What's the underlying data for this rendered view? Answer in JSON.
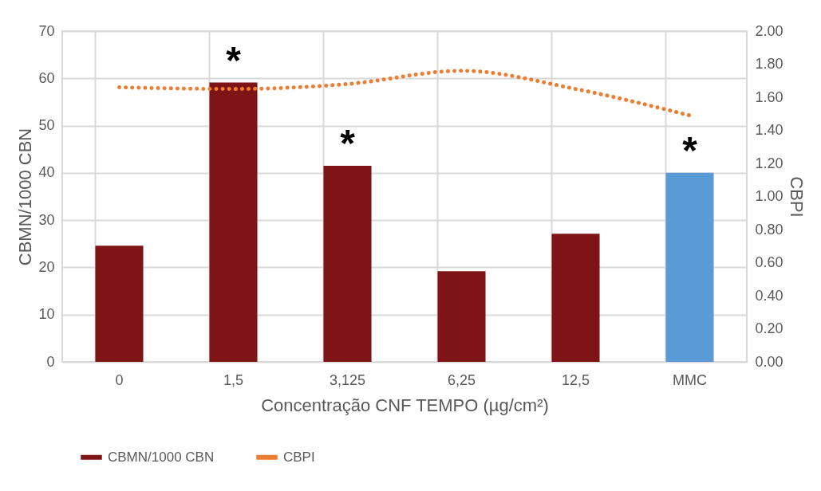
{
  "chart_data": {
    "type": "bar",
    "xlabel": "Concentração CNF TEMPO (µg/cm²)",
    "ylabel": "CBMN/1000 CBN",
    "y2label": "CBPI",
    "categories": [
      "0",
      "1,5",
      "3,125",
      "6,25",
      "12,5",
      "MMC"
    ],
    "series": [
      {
        "name": "CBMN/1000 CBN",
        "color": "#7f1416",
        "colors": [
          "#7f1416",
          "#7f1416",
          "#7f1416",
          "#7f1416",
          "#7f1416",
          "#5b9bd5"
        ],
        "values": [
          24.6,
          59.1,
          41.5,
          19.2,
          27.1,
          40.0
        ]
      },
      {
        "name": "CBPI",
        "type": "line",
        "axis": "y2",
        "color": "#ed7d31",
        "line_style": "dotted",
        "values": [
          1.66,
          1.65,
          1.68,
          1.76,
          1.65,
          1.49
        ]
      }
    ],
    "ylim": [
      0,
      70
    ],
    "yticks": [
      0,
      10,
      20,
      30,
      40,
      50,
      60,
      70
    ],
    "y2lim": [
      0,
      2
    ],
    "y2ticks": [
      {
        "value": 0,
        "label": "0.00"
      },
      {
        "value": 0.2,
        "label": "0.20"
      },
      {
        "value": 0.4,
        "label": "0.40"
      },
      {
        "value": 0.6,
        "label": "0.60"
      },
      {
        "value": 0.8,
        "label": "0.80"
      },
      {
        "value": 1,
        "label": "1.00"
      },
      {
        "value": 1.2,
        "label": "1.20"
      },
      {
        "value": 1.4,
        "label": "1.40"
      },
      {
        "value": 1.6,
        "label": "1.60"
      },
      {
        "value": 1.8,
        "label": "1.80"
      },
      {
        "value": 2,
        "label": "2.00"
      }
    ],
    "annotations": [
      {
        "text": "*",
        "x": "1,5",
        "y": 59.1
      },
      {
        "text": "*",
        "x": "3,125",
        "y": 41.5
      },
      {
        "text": "*",
        "x": "MMC",
        "y": 40.0
      }
    ],
    "grid": true,
    "legend": "bottom"
  }
}
